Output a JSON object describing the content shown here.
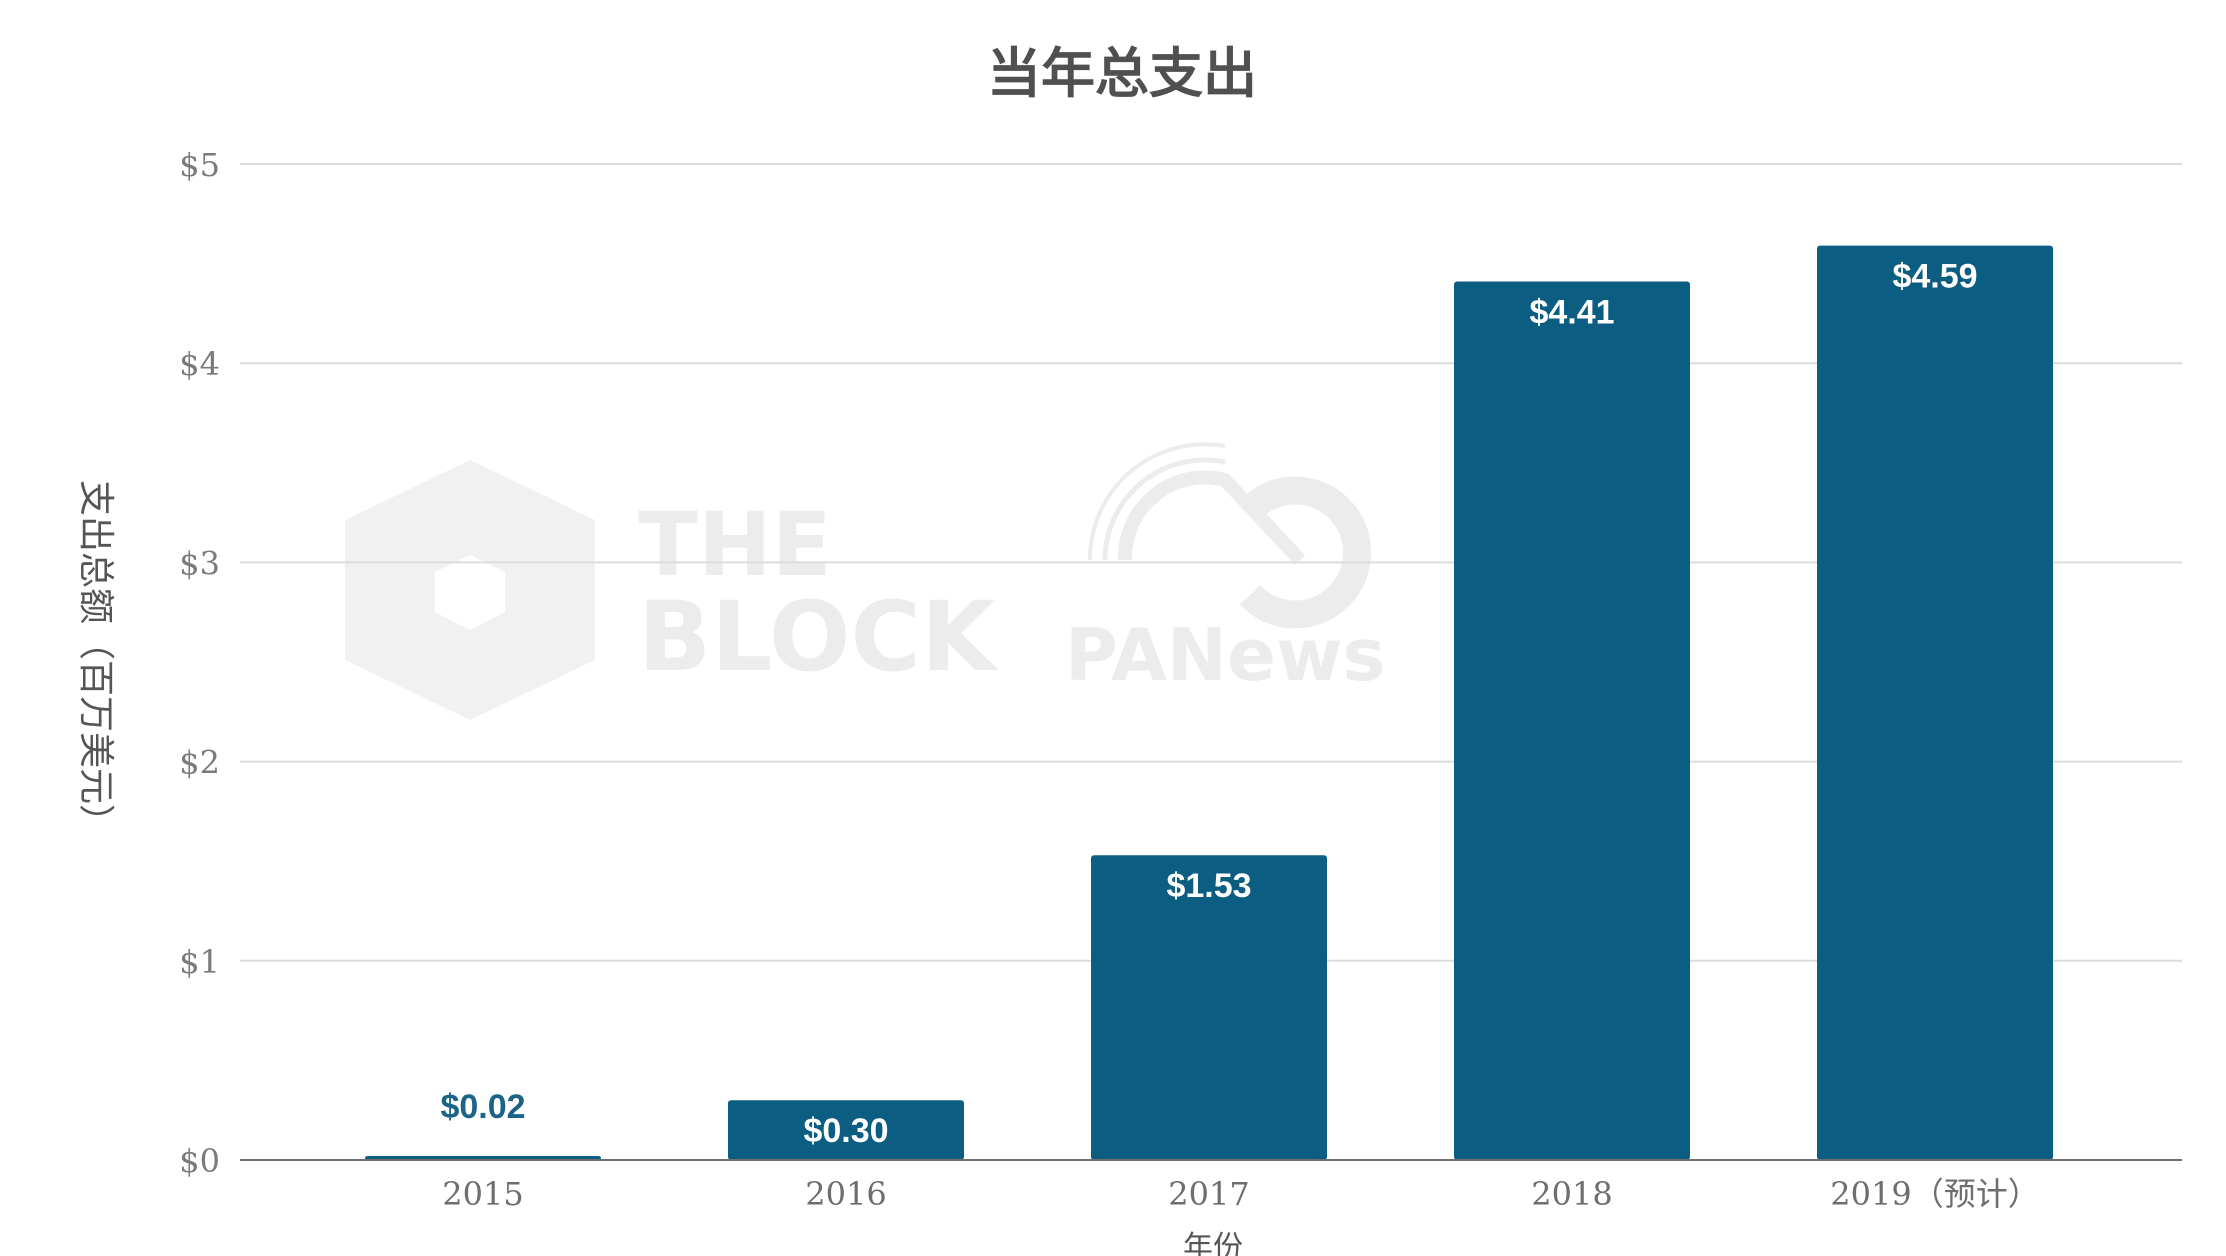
{
  "chart_data": {
    "type": "bar",
    "title": "当年总支出",
    "xlabel": "年份",
    "ylabel": "支出总额（百万美元）",
    "categories": [
      "2015",
      "2016",
      "2017",
      "2018",
      "2019（预计）"
    ],
    "values": [
      0.02,
      0.3,
      1.53,
      4.41,
      4.59
    ],
    "data_labels": [
      "$0.02",
      "$0.30",
      "$1.53",
      "$4.41",
      "$4.59"
    ],
    "ylim": [
      0,
      5
    ],
    "yticks": [
      0,
      1,
      2,
      3,
      4,
      5
    ],
    "ytick_labels": [
      "$0",
      "$1",
      "$2",
      "$3",
      "$4",
      "$5"
    ],
    "grid": true,
    "legend": "none",
    "bar_color": "#0c5d82",
    "outside_label_color": "#1b6488",
    "inside_label_color": "#ffffff"
  },
  "watermarks": {
    "left_line1": "THE",
    "left_line2": "BLOCK",
    "right": "PANews"
  }
}
